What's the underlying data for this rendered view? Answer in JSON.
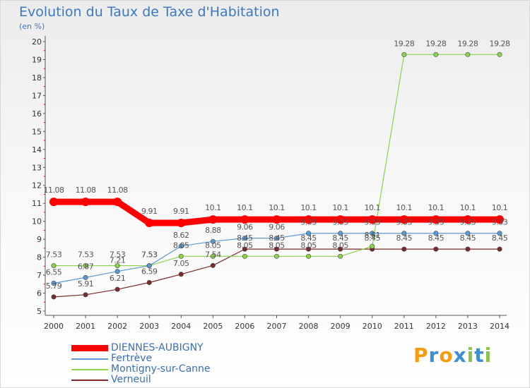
{
  "title": "Evolution du Taux de Taxe d'Habitation",
  "subtitle": "(en %)",
  "logo": {
    "letters": [
      "P",
      "r",
      "o",
      "x",
      "i",
      "t",
      "i"
    ],
    "colors": [
      "#f39c12",
      "#3a8fd6",
      "#f39c12",
      "#3a8fd6",
      "#8bc34a",
      "#3a8fd6",
      "#8bc34a"
    ]
  },
  "chart_data": {
    "type": "line",
    "x": [
      "2000",
      "2001",
      "2002",
      "2003",
      "2004",
      "2005",
      "2006",
      "2007",
      "2008",
      "2009",
      "2010",
      "2011",
      "2012",
      "2013",
      "2014"
    ],
    "ylim": [
      5,
      20
    ],
    "yticks": [
      "5",
      "6",
      "7",
      "8",
      "9",
      "10",
      "11",
      "12",
      "13",
      "14",
      "15",
      "16",
      "17",
      "18",
      "19",
      "20"
    ],
    "grid": false,
    "legend_position": "bottom-left",
    "series": [
      {
        "name": "DIENNES-AUBIGNY",
        "color": "#ff0000",
        "values": [
          11.08,
          11.08,
          11.08,
          9.91,
          9.91,
          10.1,
          10.1,
          10.1,
          10.1,
          10.1,
          10.1,
          10.1,
          10.1,
          10.1,
          10.1
        ],
        "labels": [
          "11.08",
          "11.08",
          "11.08",
          "9.91",
          "9.91",
          "10.1",
          "10.1",
          "10.1",
          "10.1",
          "10.1",
          "10.1",
          "10.1",
          "10.1",
          "10.1",
          "10.1"
        ]
      },
      {
        "name": "Fertrève",
        "color": "#5b9bd5",
        "values": [
          6.55,
          6.87,
          7.21,
          7.53,
          8.62,
          8.88,
          9.06,
          9.06,
          9.33,
          9.33,
          9.33,
          9.33,
          9.33,
          9.33,
          9.33
        ],
        "labels": [
          "6.55",
          "6.87",
          "7.21",
          "7.53",
          "8.62",
          "8.88",
          "9.06",
          "9.06",
          "9.33",
          "9.33",
          "9.33",
          "9.33",
          "9.33",
          "9.33",
          "9.33"
        ]
      },
      {
        "name": "Montigny-sur-Canne",
        "color": "#8bd34b",
        "values": [
          7.53,
          7.53,
          7.53,
          7.53,
          8.05,
          8.05,
          8.05,
          8.05,
          8.05,
          8.05,
          8.61,
          19.28,
          19.28,
          19.28,
          19.28
        ],
        "labels": [
          "7.53",
          "7.53",
          "7.53",
          "7.53",
          "8.05",
          "8.05",
          "8.05",
          "8.05",
          "8.05",
          "8.05",
          "8.61",
          "19.28",
          "19.28",
          "19.28",
          "19.28"
        ]
      },
      {
        "name": "Verneuil",
        "color": "#7a2a2a",
        "values": [
          5.79,
          5.91,
          6.21,
          6.59,
          7.05,
          7.54,
          8.45,
          8.45,
          8.45,
          8.45,
          8.45,
          8.45,
          8.45,
          8.45,
          8.45
        ],
        "labels": [
          "5.79",
          "5.91",
          "6.21",
          "6.59",
          "7.05",
          "7.54",
          "8.45",
          "8.45",
          "8.45",
          "8.45",
          "8.45",
          "8.45",
          "8.45",
          "8.45",
          "8.45"
        ]
      }
    ]
  }
}
